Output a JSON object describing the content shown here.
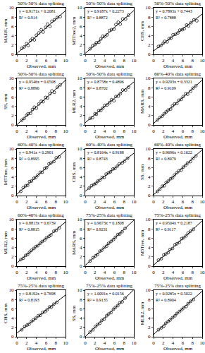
{
  "chart_data": [
    {
      "type": "scatter",
      "title": "50%-50% data splitting",
      "x_label": "Observed, mm",
      "y_label": "MARS, mm",
      "xlim": [
        0,
        10
      ],
      "ylim": [
        0,
        10
      ],
      "xticks": [
        0,
        2,
        4,
        6,
        8,
        10
      ],
      "yticks": [
        0,
        2,
        4,
        6,
        8,
        10
      ],
      "marker": "circle-open",
      "color": "#000000",
      "x": [
        1.0,
        1.5,
        2.0,
        2.3,
        2.8,
        3.2,
        3.6,
        4.0,
        4.5,
        5.0,
        5.4,
        5.9,
        6.3,
        6.8,
        7.2,
        7.7,
        8.3,
        8.9
      ],
      "values": [
        1.3,
        1.6,
        2.3,
        1.9,
        3.0,
        3.4,
        3.1,
        4.1,
        4.6,
        5.3,
        4.8,
        5.8,
        6.5,
        6.0,
        7.1,
        7.4,
        7.9,
        8.1
      ],
      "fit": {
        "slope": 0.9171,
        "intercept": 0.2081
      },
      "annotations": [
        "y = 0.9171x + 0.2081",
        "R² = 0.914"
      ]
    },
    {
      "type": "scatter",
      "title": "50%-50% data splitting",
      "x_label": "Observed, mm",
      "y_label": "M5Tree2, mm",
      "xlim": [
        0,
        10
      ],
      "ylim": [
        0,
        10
      ],
      "xticks": [
        0,
        2,
        4,
        6,
        8,
        10
      ],
      "yticks": [
        0,
        2,
        4,
        6,
        8,
        10
      ],
      "marker": "circle-open",
      "color": "#000000",
      "x": [
        1.0,
        1.5,
        2.0,
        2.3,
        2.8,
        3.2,
        3.6,
        4.0,
        4.5,
        5.0,
        5.4,
        5.9,
        6.3,
        6.8,
        7.2,
        7.7,
        8.3,
        8.9
      ],
      "values": [
        1.2,
        1.8,
        2.1,
        2.5,
        2.6,
        3.3,
        3.9,
        3.8,
        4.2,
        5.1,
        5.3,
        5.4,
        6.4,
        6.9,
        6.5,
        7.6,
        7.6,
        8.4
      ],
      "fit": {
        "slope": 0.9187,
        "intercept": 0.2273
      },
      "annotations": [
        "y = 0.9187x + 0.2273",
        "R² = 0.8872"
      ]
    },
    {
      "type": "scatter",
      "title": "50%-50% data splitting",
      "x_label": "Observed, mm",
      "y_label": "CHS, mm",
      "xlim": [
        0,
        10
      ],
      "ylim": [
        0,
        10
      ],
      "xticks": [
        0,
        2,
        4,
        6,
        8,
        10
      ],
      "yticks": [
        0,
        2,
        4,
        6,
        8,
        10
      ],
      "marker": "circle-open",
      "color": "#000000",
      "x": [
        1.0,
        1.5,
        2.0,
        2.3,
        2.8,
        3.2,
        3.6,
        4.0,
        4.5,
        5.0,
        5.4,
        5.9,
        6.3,
        6.8,
        7.2,
        7.7,
        8.3,
        8.9
      ],
      "values": [
        1.7,
        1.9,
        2.4,
        2.8,
        2.7,
        3.4,
        3.5,
        4.2,
        4.3,
        4.6,
        5.2,
        5.3,
        5.5,
        6.3,
        6.1,
        6.8,
        7.4,
        7.2
      ],
      "fit": {
        "slope": 0.7893,
        "intercept": 0.7443
      },
      "annotations": [
        "y = 0.7893x + 0.7443",
        "R² = 0.7888"
      ]
    },
    {
      "type": "scatter",
      "title": "50%-50% data splitting",
      "x_label": "Observed, mm",
      "y_label": "SS, mm",
      "xlim": [
        0,
        10
      ],
      "ylim": [
        0,
        10
      ],
      "xticks": [
        0,
        2,
        4,
        6,
        8,
        10
      ],
      "yticks": [
        0,
        2,
        4,
        6,
        8,
        10
      ],
      "marker": "circle-open",
      "color": "#000000",
      "x": [
        1.0,
        1.5,
        2.0,
        2.3,
        2.8,
        3.2,
        3.6,
        4.0,
        4.5,
        5.0,
        5.4,
        5.9,
        6.3,
        6.8,
        7.2,
        7.7,
        8.3,
        8.9
      ],
      "values": [
        1.0,
        1.4,
        2.1,
        2.4,
        2.5,
        3.3,
        3.8,
        3.6,
        4.5,
        5.1,
        5.0,
        5.9,
        5.8,
        6.7,
        7.3,
        7.0,
        8.1,
        8.6
      ],
      "fit": {
        "slope": 0.9546,
        "intercept": 0.0508
      },
      "annotations": [
        "y = 0.9546x + 0.0508",
        "R² = 0.8896"
      ]
    },
    {
      "type": "scatter",
      "title": "50%-50% data splitting",
      "x_label": "Observed, mm",
      "y_label": "MLR2, mm",
      "xlim": [
        0,
        10
      ],
      "ylim": [
        0,
        10
      ],
      "xticks": [
        0,
        2,
        4,
        6,
        8,
        10
      ],
      "yticks": [
        0,
        2,
        4,
        6,
        8,
        10
      ],
      "marker": "circle-open",
      "color": "#000000",
      "x": [
        1.0,
        1.5,
        2.0,
        2.3,
        2.8,
        3.2,
        3.6,
        4.0,
        4.5,
        5.0,
        5.4,
        5.9,
        6.3,
        6.8,
        7.2,
        7.7,
        8.3,
        8.9
      ],
      "values": [
        1.4,
        1.6,
        2.4,
        2.3,
        3.1,
        3.1,
        3.6,
        4.2,
        4.3,
        4.8,
        5.4,
        5.2,
        6.1,
        6.2,
        6.7,
        7.5,
        7.5,
        8.1
      ],
      "fit": {
        "slope": 0.8758,
        "intercept": 0.4896
      },
      "annotations": [
        "y = 0.8758x + 0.4896",
        "R² = 0.8702"
      ]
    },
    {
      "type": "scatter",
      "title": "60%-40% data splitting",
      "x_label": "Observed, mm",
      "y_label": "MARS, mm",
      "xlim": [
        0,
        10
      ],
      "ylim": [
        0,
        10
      ],
      "xticks": [
        0,
        2,
        4,
        6,
        8,
        10
      ],
      "yticks": [
        0,
        2,
        4,
        6,
        8,
        10
      ],
      "marker": "circle-open",
      "color": "#000000",
      "x": [
        0.8,
        1.3,
        1.8,
        2.2,
        2.6,
        3.0,
        3.5,
        3.9,
        4.3,
        4.8,
        5.2,
        5.7,
        6.1,
        6.6,
        7.0,
        7.6,
        8.1,
        8.7
      ],
      "values": [
        1.1,
        1.6,
        1.9,
        2.4,
        2.8,
        3.2,
        3.4,
        4.1,
        4.5,
        4.6,
        5.3,
        5.5,
        6.1,
        6.7,
        6.6,
        7.2,
        7.9,
        8.4
      ],
      "fit": {
        "slope": 0.9293,
        "intercept": 0.3321
      },
      "annotations": [
        "y = 0.9293x + 0.3321",
        "R² = 0.9109"
      ]
    },
    {
      "type": "scatter",
      "title": "60%-40% data splitting",
      "x_label": "Observed, mm",
      "y_label": "M5Tree, mm",
      "xlim": [
        0,
        10
      ],
      "ylim": [
        0,
        10
      ],
      "xticks": [
        0,
        2,
        4,
        6,
        8,
        10
      ],
      "yticks": [
        0,
        2,
        4,
        6,
        8,
        10
      ],
      "marker": "circle-open",
      "color": "#000000",
      "x": [
        0.8,
        1.3,
        1.8,
        2.2,
        2.6,
        3.0,
        3.5,
        3.9,
        4.3,
        4.8,
        5.2,
        5.7,
        6.1,
        6.6,
        7.0,
        7.6,
        8.1,
        8.7
      ],
      "values": [
        0.9,
        1.7,
        2.1,
        2.2,
        3.0,
        3.1,
        3.7,
        3.9,
        4.4,
        5.0,
        5.0,
        5.8,
        6.0,
        6.8,
        7.0,
        7.3,
        8.1,
        8.3
      ],
      "fit": {
        "slope": 0.941,
        "intercept": 0.2901
      },
      "annotations": [
        "y = 0.941x + 0.2901",
        "R² = 0.8995"
      ]
    },
    {
      "type": "scatter",
      "title": "60%-40% data splitting",
      "x_label": "Observed, mm",
      "y_label": "CHS, mm",
      "xlim": [
        0,
        10
      ],
      "ylim": [
        0,
        10
      ],
      "xticks": [
        0,
        2,
        4,
        6,
        8,
        10
      ],
      "yticks": [
        0,
        2,
        4,
        6,
        8,
        10
      ],
      "marker": "circle-open",
      "color": "#000000",
      "x": [
        0.8,
        1.3,
        1.8,
        2.2,
        2.6,
        3.0,
        3.5,
        3.9,
        4.3,
        4.8,
        5.2,
        5.7,
        6.1,
        6.6,
        7.0,
        7.6,
        8.1,
        8.7
      ],
      "values": [
        1.6,
        2.1,
        2.4,
        2.6,
        3.1,
        3.3,
        3.9,
        3.9,
        4.6,
        4.9,
        5.1,
        5.7,
        5.8,
        6.3,
        6.8,
        7.0,
        7.4,
        8.0
      ],
      "fit": {
        "slope": 0.8164,
        "intercept": 0.9188
      },
      "annotations": [
        "y = 0.8164x + 0.9188",
        "R² = 0.8743"
      ]
    },
    {
      "type": "scatter",
      "title": "60%-40% data splitting",
      "x_label": "Observed, mm",
      "y_label": "SS, mm",
      "xlim": [
        0,
        10
      ],
      "ylim": [
        0,
        10
      ],
      "xticks": [
        0,
        2,
        4,
        6,
        8,
        10
      ],
      "yticks": [
        0,
        2,
        4,
        6,
        8,
        10
      ],
      "marker": "circle-open",
      "color": "#000000",
      "x": [
        0.8,
        1.3,
        1.8,
        2.2,
        2.6,
        3.0,
        3.5,
        3.9,
        4.3,
        4.8,
        5.2,
        5.7,
        6.1,
        6.6,
        7.0,
        7.6,
        8.1,
        8.7
      ],
      "values": [
        0.9,
        1.4,
        2.0,
        2.1,
        2.8,
        3.1,
        3.6,
        3.8,
        4.4,
        4.9,
        5.3,
        5.5,
        6.1,
        6.5,
        7.0,
        7.3,
        8.0,
        8.5
      ],
      "fit": {
        "slope": 0.9696,
        "intercept": 0.1622
      },
      "annotations": [
        "y = 0.9696x + 0.1622",
        "R² = 0.8979"
      ]
    },
    {
      "type": "scatter",
      "title": "60%-40% data splitting",
      "x_label": "Observed, mm",
      "y_label": "MLR2, mm",
      "xlim": [
        0,
        10
      ],
      "ylim": [
        0,
        10
      ],
      "xticks": [
        0,
        2,
        4,
        6,
        8,
        10
      ],
      "yticks": [
        0,
        2,
        4,
        6,
        8,
        10
      ],
      "marker": "circle-open",
      "color": "#000000",
      "x": [
        0.8,
        1.3,
        1.8,
        2.2,
        2.6,
        3.0,
        3.5,
        3.9,
        4.3,
        4.8,
        5.2,
        5.7,
        6.1,
        6.6,
        7.0,
        7.6,
        8.1,
        8.7
      ],
      "values": [
        1.4,
        1.7,
        2.3,
        2.5,
        3.0,
        3.4,
        3.8,
        4.2,
        4.4,
        4.9,
        5.3,
        5.6,
        6.1,
        6.4,
        6.7,
        7.5,
        7.7,
        8.2
      ],
      "fit": {
        "slope": 0.8813,
        "intercept": 0.6739
      },
      "annotations": [
        "y = 0.8813x + 0.6739",
        "R² = 0.8815"
      ]
    },
    {
      "type": "scatter",
      "title": "75%-25% data splitting",
      "x_label": "Observed, mm",
      "y_label": "MARS, mm",
      "xlim": [
        0,
        10
      ],
      "ylim": [
        0,
        10
      ],
      "xticks": [
        0,
        2,
        4,
        6,
        8,
        10
      ],
      "yticks": [
        0,
        2,
        4,
        6,
        8,
        10
      ],
      "marker": "circle-open",
      "color": "#000000",
      "x": [
        1.0,
        1.6,
        2.1,
        2.5,
        3.0,
        3.4,
        3.9,
        4.4,
        4.8,
        5.3,
        5.8,
        6.2,
        6.7,
        7.1,
        7.6,
        8.2
      ],
      "values": [
        1.1,
        1.8,
        2.2,
        2.5,
        3.2,
        3.4,
        4.0,
        4.3,
        4.9,
        5.3,
        5.7,
        6.2,
        6.8,
        6.9,
        7.4,
        8.1
      ],
      "fit": {
        "slope": 0.9673,
        "intercept": 0.1808
      },
      "annotations": [
        "y = 0.9673x + 0.1808",
        "R² = 0.9231"
      ]
    },
    {
      "type": "scatter",
      "title": "75%-25% data splitting",
      "x_label": "Observed, mm",
      "y_label": "M5Tree, mm",
      "xlim": [
        0,
        10
      ],
      "ylim": [
        0,
        10
      ],
      "xticks": [
        0,
        2,
        4,
        6,
        8,
        10
      ],
      "yticks": [
        0,
        2,
        4,
        6,
        8,
        10
      ],
      "marker": "circle-open",
      "color": "#000000",
      "x": [
        1.0,
        1.6,
        2.1,
        2.5,
        3.0,
        3.4,
        3.9,
        4.4,
        4.8,
        5.3,
        5.8,
        6.2,
        6.7,
        7.1,
        7.6,
        8.2
      ],
      "values": [
        1.3,
        1.6,
        2.4,
        2.6,
        2.9,
        3.6,
        3.8,
        4.6,
        4.8,
        5.1,
        5.9,
        6.1,
        6.5,
        7.1,
        7.5,
        7.9
      ],
      "fit": {
        "slope": 0.9504,
        "intercept": 0.2187
      },
      "annotations": [
        "y = 0.9504x + 0.2187",
        "R² = 0.9117"
      ]
    },
    {
      "type": "scatter",
      "title": "75%-25% data splitting",
      "x_label": "Observed, mm",
      "y_label": "CHS, mm",
      "xlim": [
        0,
        10
      ],
      "ylim": [
        0,
        10
      ],
      "xticks": [
        0,
        2,
        4,
        6,
        8,
        10
      ],
      "yticks": [
        0,
        2,
        4,
        6,
        8,
        10
      ],
      "marker": "circle-open",
      "color": "#000000",
      "x": [
        1.0,
        1.6,
        2.1,
        2.5,
        3.0,
        3.4,
        3.9,
        4.4,
        4.8,
        5.3,
        5.8,
        6.2,
        6.7,
        7.1,
        7.6,
        8.2
      ],
      "values": [
        1.5,
        2.2,
        2.5,
        2.7,
        3.3,
        3.6,
        4.0,
        4.5,
        4.6,
        5.2,
        5.4,
        5.8,
        6.4,
        6.4,
        7.0,
        7.4
      ],
      "fit": {
        "slope": 0.8192,
        "intercept": 0.7698
      },
      "annotations": [
        "y = 0.8192x + 0.7698",
        "R² = 0.8193"
      ]
    },
    {
      "type": "scatter",
      "title": "75%-25% data splitting",
      "x_label": "Observed, mm",
      "y_label": "SS, mm",
      "xlim": [
        0,
        10
      ],
      "ylim": [
        0,
        10
      ],
      "xticks": [
        0,
        2,
        4,
        6,
        8,
        10
      ],
      "yticks": [
        0,
        2,
        4,
        6,
        8,
        10
      ],
      "marker": "circle-open",
      "color": "#000000",
      "x": [
        1.0,
        1.6,
        2.1,
        2.5,
        3.0,
        3.4,
        3.9,
        4.4,
        4.8,
        5.3,
        5.8,
        6.2,
        6.7,
        7.1,
        7.6,
        8.2
      ],
      "values": [
        1.0,
        1.5,
        2.2,
        2.6,
        2.9,
        3.5,
        3.8,
        4.5,
        4.9,
        5.2,
        5.9,
        6.3,
        6.7,
        7.3,
        7.5,
        8.3
      ],
      "fit": {
        "slope": 1.0091,
        "intercept": 0.0156
      },
      "annotations": [
        "y = 1.0091x + 0.0156",
        "R² = 0.9135"
      ]
    },
    {
      "type": "scatter",
      "title": "75%-25% data splitting",
      "x_label": "Observed, mm",
      "y_label": "MLR2, mm",
      "xlim": [
        0,
        10
      ],
      "ylim": [
        0,
        10
      ],
      "xticks": [
        0,
        2,
        4,
        6,
        8,
        10
      ],
      "yticks": [
        0,
        2,
        4,
        6,
        8,
        10
      ],
      "marker": "circle-open",
      "color": "#000000",
      "x": [
        1.0,
        1.6,
        2.1,
        2.5,
        3.0,
        3.4,
        3.9,
        4.4,
        4.8,
        5.3,
        5.8,
        6.2,
        6.7,
        7.1,
        7.6,
        8.2
      ],
      "values": [
        1.5,
        1.9,
        2.3,
        2.9,
        3.3,
        3.6,
        4.1,
        4.5,
        5.0,
        5.4,
        5.8,
        6.2,
        6.5,
        7.1,
        7.6,
        8.0
      ],
      "fit": {
        "slope": 0.9285,
        "intercept": 0.5022
      },
      "annotations": [
        "y = 0.9285x + 0.5022",
        "R² = 0.8904"
      ]
    }
  ]
}
